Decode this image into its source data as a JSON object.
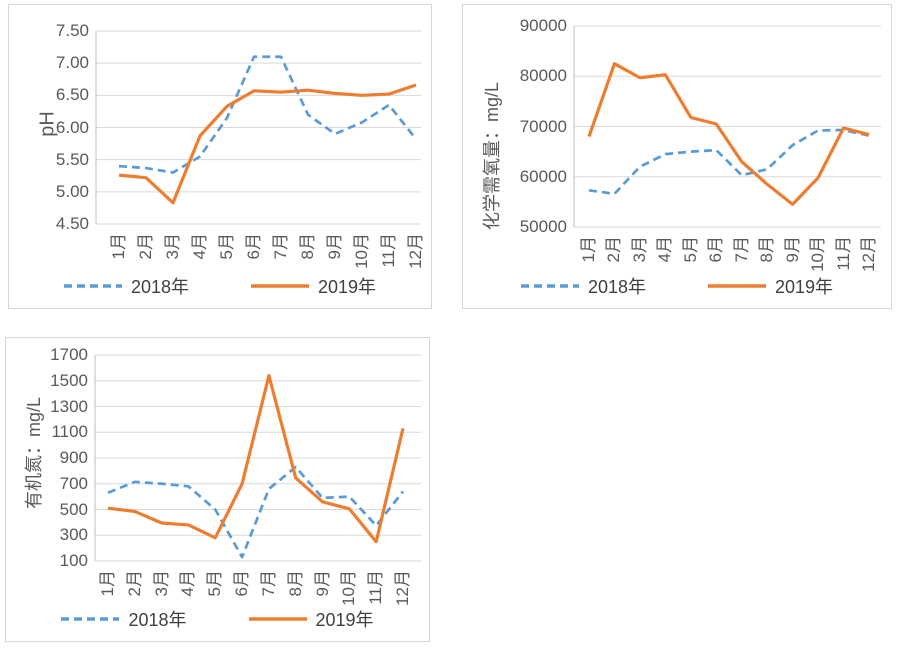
{
  "page": {
    "background": "#ffffff"
  },
  "colors": {
    "series_2018": "#5B9BD5",
    "series_2019": "#ED7D31",
    "gridline": "#D9D9D9",
    "axis_line": "#BFBFBF",
    "tick_text": "#595959",
    "border": "#D6D6D6"
  },
  "chart_data": [
    {
      "id": "ph",
      "type": "line",
      "title": "",
      "xlabel": "",
      "ylabel": "pH",
      "categories": [
        "1月",
        "2月",
        "3月",
        "4月",
        "5月",
        "6月",
        "7月",
        "8月",
        "9月",
        "10月",
        "11月",
        "12月"
      ],
      "ylim": [
        4.5,
        7.5
      ],
      "ytick_labels": [
        "7.50",
        "7.00",
        "6.50",
        "6.00",
        "5.50",
        "5.00",
        "4.50"
      ],
      "grid": true,
      "legend_position": "bottom",
      "series": [
        {
          "name": "2018年",
          "style": "dashed",
          "color": "#5B9BD5",
          "values": [
            5.4,
            5.37,
            5.3,
            5.55,
            6.15,
            7.1,
            7.1,
            6.2,
            5.9,
            6.08,
            6.35,
            5.82
          ]
        },
        {
          "name": "2019年",
          "style": "solid",
          "color": "#ED7D31",
          "values": [
            5.26,
            5.22,
            4.83,
            5.87,
            6.33,
            6.57,
            6.55,
            6.58,
            6.53,
            6.5,
            6.52,
            6.66
          ]
        }
      ]
    },
    {
      "id": "cod",
      "type": "line",
      "title": "",
      "xlabel": "",
      "ylabel": "化学需氧量：mg/L",
      "categories": [
        "1月",
        "2月",
        "3月",
        "4月",
        "5月",
        "6月",
        "7月",
        "8月",
        "9月",
        "10月",
        "11月",
        "12月"
      ],
      "ylim": [
        50000,
        90000
      ],
      "ytick_labels": [
        "90000",
        "80000",
        "70000",
        "60000",
        "50000"
      ],
      "grid": true,
      "legend_position": "bottom",
      "series": [
        {
          "name": "2018年",
          "style": "dashed",
          "color": "#5B9BD5",
          "values": [
            57300,
            56600,
            62000,
            64500,
            65000,
            65300,
            60300,
            61500,
            66300,
            69200,
            69300,
            68200
          ]
        },
        {
          "name": "2019年",
          "style": "solid",
          "color": "#ED7D31",
          "values": [
            68000,
            82500,
            79700,
            80300,
            71800,
            70500,
            63000,
            58500,
            54500,
            59800,
            69700,
            68400
          ]
        }
      ]
    },
    {
      "id": "n",
      "type": "line",
      "title": "",
      "xlabel": "",
      "ylabel": "有机氮：mg/L",
      "categories": [
        "1月",
        "2月",
        "3月",
        "4月",
        "5月",
        "6月",
        "7月",
        "8月",
        "9月",
        "10月",
        "11月",
        "12月"
      ],
      "ylim": [
        100,
        1700
      ],
      "ytick_labels": [
        "1700",
        "1500",
        "1300",
        "1100",
        "900",
        "700",
        "500",
        "300",
        "100"
      ],
      "grid": true,
      "legend_position": "bottom",
      "series": [
        {
          "name": "2018年",
          "style": "dashed",
          "color": "#5B9BD5",
          "values": [
            630,
            715,
            700,
            680,
            500,
            130,
            660,
            830,
            590,
            600,
            375,
            640
          ]
        },
        {
          "name": "2019年",
          "style": "solid",
          "color": "#ED7D31",
          "values": [
            510,
            485,
            395,
            380,
            280,
            700,
            1540,
            745,
            560,
            505,
            250,
            1130
          ]
        }
      ]
    }
  ]
}
